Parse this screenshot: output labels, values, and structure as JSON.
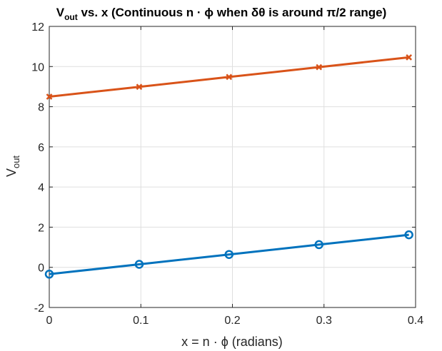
{
  "chart_data": {
    "type": "line",
    "title_parts": {
      "main": "V",
      "main_sub": "out",
      "rest": " vs. x (Continuous n · ϕ when δθ is around π/2 range)"
    },
    "xlabel": "x = n · ϕ (radians)",
    "ylabel_parts": {
      "main": "V",
      "sub": "out"
    },
    "xlim": [
      0,
      0.4
    ],
    "ylim": [
      -2,
      12
    ],
    "xticks": [
      0,
      0.1,
      0.2,
      0.3,
      0.4
    ],
    "xtick_labels": [
      "0",
      "0.1",
      "0.2",
      "0.3",
      "0.4"
    ],
    "yticks": [
      -2,
      0,
      2,
      4,
      6,
      8,
      10,
      12
    ],
    "ytick_labels": [
      "-2",
      "0",
      "2",
      "4",
      "6",
      "8",
      "10",
      "12"
    ],
    "grid": true,
    "x": [
      0,
      0.0982,
      0.1963,
      0.2945,
      0.3927
    ],
    "series": [
      {
        "values": [
          -0.34,
          0.15,
          0.64,
          1.13,
          1.62
        ],
        "color": "#0072BD",
        "marker": "circle"
      },
      {
        "values": [
          8.5,
          8.99,
          9.48,
          9.97,
          10.46
        ],
        "color": "#D95319",
        "marker": "x"
      }
    ]
  }
}
